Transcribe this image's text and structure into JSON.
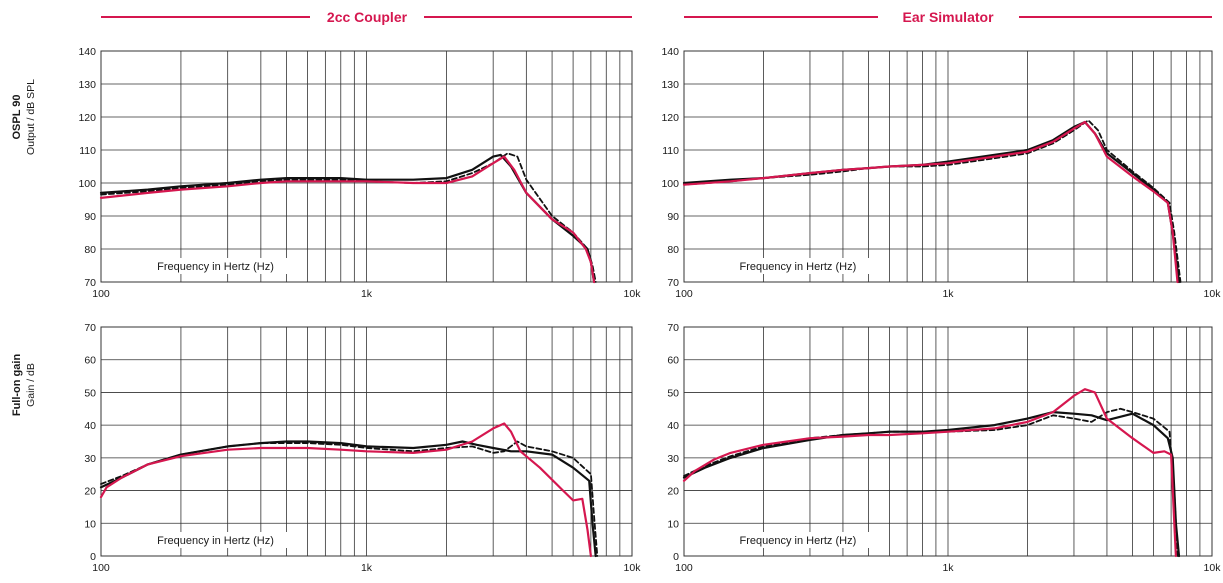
{
  "headers": {
    "left": "2cc Coupler",
    "right": "Ear Simulator"
  },
  "rows": [
    {
      "name": "OSPL 90",
      "unit": "Output / dB SPL"
    },
    {
      "name": "Full-on gain",
      "unit": "Gain / dB"
    }
  ],
  "colors": {
    "accent": "#d5174f",
    "black": "#111111",
    "grid": "#333333"
  },
  "chart_data": [
    {
      "type": "line",
      "panel": "OSPL 90 - 2cc Coupler",
      "xlabel": "Frequency in Hertz (Hz)",
      "xscale": "log",
      "xlim": [
        100,
        10000
      ],
      "xtick_labels": [
        "100",
        "1k",
        "10k"
      ],
      "ylim": [
        70,
        140
      ],
      "yticks": [
        70,
        80,
        90,
        100,
        110,
        120,
        130,
        140
      ],
      "grid": true,
      "series": [
        {
          "style": "black-solid",
          "color": "#111111",
          "x": [
            100,
            150,
            200,
            300,
            400,
            500,
            600,
            800,
            1000,
            1500,
            2000,
            2500,
            3000,
            3200,
            3500,
            4000,
            5000,
            6000,
            6800,
            7000,
            7200
          ],
          "y": [
            97,
            98,
            99,
            100,
            101,
            101.5,
            101.5,
            101.5,
            101,
            101,
            101.5,
            104,
            108,
            108.5,
            105,
            97,
            89,
            84,
            80,
            76,
            70
          ]
        },
        {
          "style": "black-dashed",
          "color": "#111111",
          "x": [
            100,
            150,
            200,
            300,
            400,
            500,
            600,
            800,
            1000,
            1500,
            2000,
            2500,
            3000,
            3400,
            3700,
            4000,
            5000,
            6000,
            6800,
            7100,
            7300
          ],
          "y": [
            96.5,
            97.5,
            98.5,
            99.5,
            100.5,
            101,
            101,
            101,
            100.5,
            100,
            100.5,
            103,
            106,
            109,
            108,
            101,
            90,
            85,
            80,
            75,
            70
          ]
        },
        {
          "style": "red-solid",
          "color": "#d5174f",
          "x": [
            100,
            150,
            200,
            300,
            400,
            500,
            600,
            800,
            1000,
            1500,
            2000,
            2500,
            3000,
            3300,
            3600,
            4000,
            5000,
            6000,
            6700,
            7000,
            7200
          ],
          "y": [
            95.5,
            97,
            98,
            99,
            100,
            100.5,
            100.5,
            100.5,
            100.5,
            100,
            100,
            102,
            106,
            108,
            104,
            97,
            89,
            85,
            80,
            76,
            70
          ]
        }
      ]
    },
    {
      "type": "line",
      "panel": "OSPL 90 - Ear Simulator",
      "xlabel": "Frequency in Hertz (Hz)",
      "xscale": "log",
      "xlim": [
        100,
        10000
      ],
      "xtick_labels": [
        "100",
        "1k",
        "10k"
      ],
      "ylim": [
        70,
        140
      ],
      "yticks": [
        70,
        80,
        90,
        100,
        110,
        120,
        130,
        140
      ],
      "grid": true,
      "series": [
        {
          "style": "black-solid",
          "color": "#111111",
          "x": [
            100,
            150,
            200,
            300,
            400,
            500,
            600,
            800,
            1000,
            1500,
            2000,
            2500,
            3000,
            3300,
            3600,
            4000,
            5000,
            6000,
            6800,
            7100,
            7500
          ],
          "y": [
            100,
            101,
            101.5,
            103,
            104,
            104.5,
            105,
            105.5,
            106.5,
            108.5,
            110,
            113,
            117,
            118.5,
            115,
            109,
            103,
            98,
            94,
            85,
            70
          ]
        },
        {
          "style": "black-dashed",
          "color": "#111111",
          "x": [
            100,
            150,
            200,
            300,
            400,
            500,
            600,
            800,
            1000,
            1500,
            2000,
            2500,
            3000,
            3400,
            3700,
            4000,
            5000,
            6000,
            6900,
            7200,
            7600
          ],
          "y": [
            99.5,
            100.5,
            101.5,
            102.5,
            103.5,
            104.5,
            105,
            105,
            105.5,
            107.5,
            109,
            112,
            116,
            119,
            116,
            110,
            103.5,
            98.5,
            94,
            85,
            70
          ]
        },
        {
          "style": "red-solid",
          "color": "#d5174f",
          "x": [
            100,
            150,
            200,
            300,
            400,
            500,
            600,
            800,
            1000,
            1500,
            2000,
            2500,
            3000,
            3300,
            3600,
            4000,
            5000,
            6000,
            6800,
            7100,
            7400
          ],
          "y": [
            99.5,
            100.5,
            101.5,
            103,
            104,
            104.5,
            105,
            105.5,
            106,
            108,
            109.5,
            112.5,
            116.5,
            118.5,
            115,
            108,
            102,
            97.5,
            94,
            85,
            70
          ]
        }
      ]
    },
    {
      "type": "line",
      "panel": "Full-on gain - 2cc Coupler",
      "xlabel": "Frequency in Hertz (Hz)",
      "xscale": "log",
      "xlim": [
        100,
        10000
      ],
      "xtick_labels": [
        "100",
        "1k",
        "10k"
      ],
      "ylim": [
        0,
        70
      ],
      "yticks": [
        0,
        10,
        20,
        30,
        40,
        50,
        60,
        70
      ],
      "grid": true,
      "series": [
        {
          "style": "black-solid",
          "color": "#111111",
          "x": [
            100,
            120,
            150,
            200,
            300,
            400,
            500,
            600,
            800,
            1000,
            1500,
            2000,
            2300,
            2600,
            3000,
            3500,
            4000,
            5000,
            6000,
            6900,
            7100,
            7300
          ],
          "y": [
            21,
            24,
            28,
            31,
            33.5,
            34.5,
            35,
            35,
            34.5,
            33.5,
            33,
            34,
            35,
            34,
            33,
            32,
            32,
            31,
            27,
            23,
            10,
            0
          ]
        },
        {
          "style": "black-dashed",
          "color": "#111111",
          "x": [
            100,
            120,
            150,
            200,
            300,
            400,
            500,
            600,
            800,
            1000,
            1500,
            2000,
            2500,
            3000,
            3300,
            3700,
            4000,
            5000,
            6000,
            7000,
            7200,
            7400
          ],
          "y": [
            22,
            24.5,
            28,
            31,
            33.5,
            34.5,
            34.5,
            34.5,
            34,
            33,
            32,
            33,
            33.5,
            31.5,
            32,
            35,
            33.5,
            32,
            30,
            25,
            12,
            0
          ]
        },
        {
          "style": "red-solid",
          "color": "#d5174f",
          "x": [
            100,
            105,
            120,
            150,
            200,
            300,
            400,
            500,
            600,
            800,
            1000,
            1500,
            2000,
            2500,
            3000,
            3300,
            3500,
            3800,
            4500,
            5500,
            6000,
            6500,
            6800,
            7000
          ],
          "y": [
            18,
            21,
            24,
            28,
            30.5,
            32.5,
            33,
            33,
            33,
            32.5,
            32,
            31.5,
            32.5,
            35,
            39,
            40.5,
            38,
            32,
            27,
            20,
            17,
            17.5,
            8,
            0
          ]
        }
      ]
    },
    {
      "type": "line",
      "panel": "Full-on gain - Ear Simulator",
      "xlabel": "Frequency in Hertz (Hz)",
      "xscale": "log",
      "xlim": [
        100,
        10000
      ],
      "xtick_labels": [
        "100",
        "1k",
        "10k"
      ],
      "ylim": [
        0,
        70
      ],
      "yticks": [
        0,
        10,
        20,
        30,
        40,
        50,
        60,
        70
      ],
      "grid": true,
      "series": [
        {
          "style": "black-solid",
          "color": "#111111",
          "x": [
            100,
            120,
            150,
            200,
            300,
            400,
            500,
            600,
            800,
            1000,
            1500,
            2000,
            2500,
            3000,
            3500,
            4000,
            5000,
            6000,
            6800,
            7100,
            7300,
            7500
          ],
          "y": [
            24,
            27,
            30,
            33,
            35.5,
            37,
            37.5,
            38,
            38,
            38.5,
            40,
            42,
            44,
            43.5,
            43,
            41.5,
            43.5,
            40,
            36,
            30,
            10,
            0
          ]
        },
        {
          "style": "black-dashed",
          "color": "#111111",
          "x": [
            100,
            120,
            150,
            200,
            300,
            400,
            500,
            600,
            800,
            1000,
            1500,
            2000,
            2500,
            3000,
            3500,
            4000,
            4500,
            5000,
            6000,
            6900,
            7200,
            7400
          ],
          "y": [
            24.5,
            27.5,
            30.5,
            33.5,
            36,
            37,
            37.5,
            38,
            38,
            38,
            38.5,
            40,
            43,
            42,
            41,
            44,
            45,
            44,
            42,
            38,
            20,
            0
          ]
        },
        {
          "style": "red-solid",
          "color": "#d5174f",
          "x": [
            100,
            110,
            130,
            150,
            200,
            300,
            400,
            500,
            600,
            800,
            1000,
            1500,
            2000,
            2500,
            3000,
            3300,
            3600,
            4000,
            5000,
            6000,
            6600,
            7000,
            7200,
            7300
          ],
          "y": [
            23,
            26,
            29.5,
            31.5,
            34,
            36,
            36.5,
            37,
            37,
            37.5,
            38,
            39,
            41,
            44,
            49,
            51,
            50,
            42,
            36,
            31.5,
            32,
            31,
            10,
            0
          ]
        }
      ]
    }
  ]
}
